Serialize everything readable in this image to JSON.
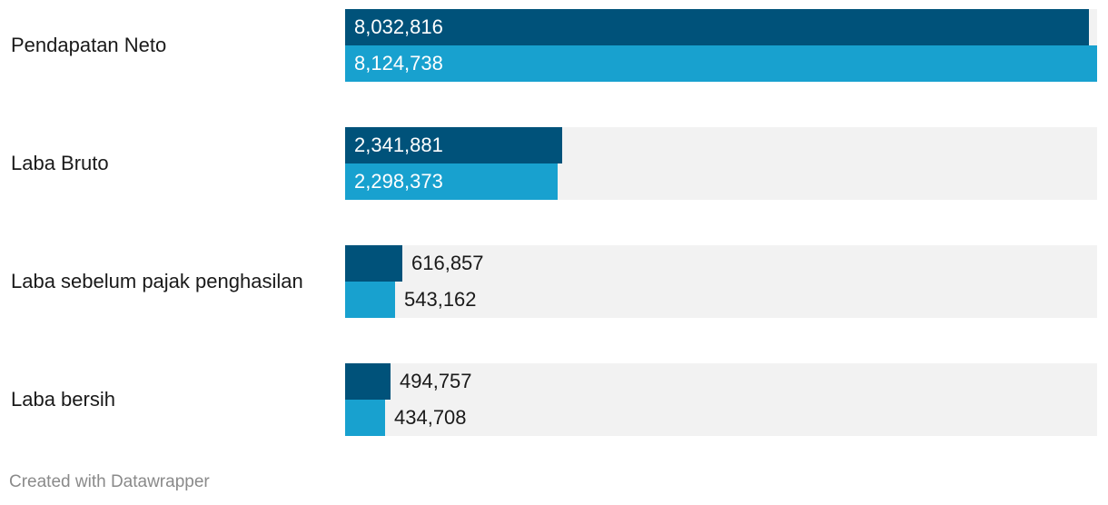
{
  "chart_data": {
    "type": "bar",
    "orientation": "horizontal",
    "categories": [
      "Pendapatan Neto",
      "Laba Bruto",
      "Laba sebelum pajak penghasilan",
      "Laba bersih"
    ],
    "series": [
      {
        "values": [
          8032816,
          2341881,
          616857,
          494757
        ],
        "color": "#00527a"
      },
      {
        "values": [
          8124738,
          2298373,
          543162,
          434708
        ],
        "color": "#18a1cf"
      }
    ],
    "value_labels": [
      [
        "8,032,816",
        "8,124,738"
      ],
      [
        "2,341,881",
        "2,298,373"
      ],
      [
        "616,857",
        "543,162"
      ],
      [
        "494,757",
        "434,708"
      ]
    ],
    "xlim": [
      0,
      8124738
    ],
    "background_track_color": "#f2f2f2",
    "grid": false,
    "legend": "none"
  },
  "footer": {
    "credit": "Created with Datawrapper"
  }
}
